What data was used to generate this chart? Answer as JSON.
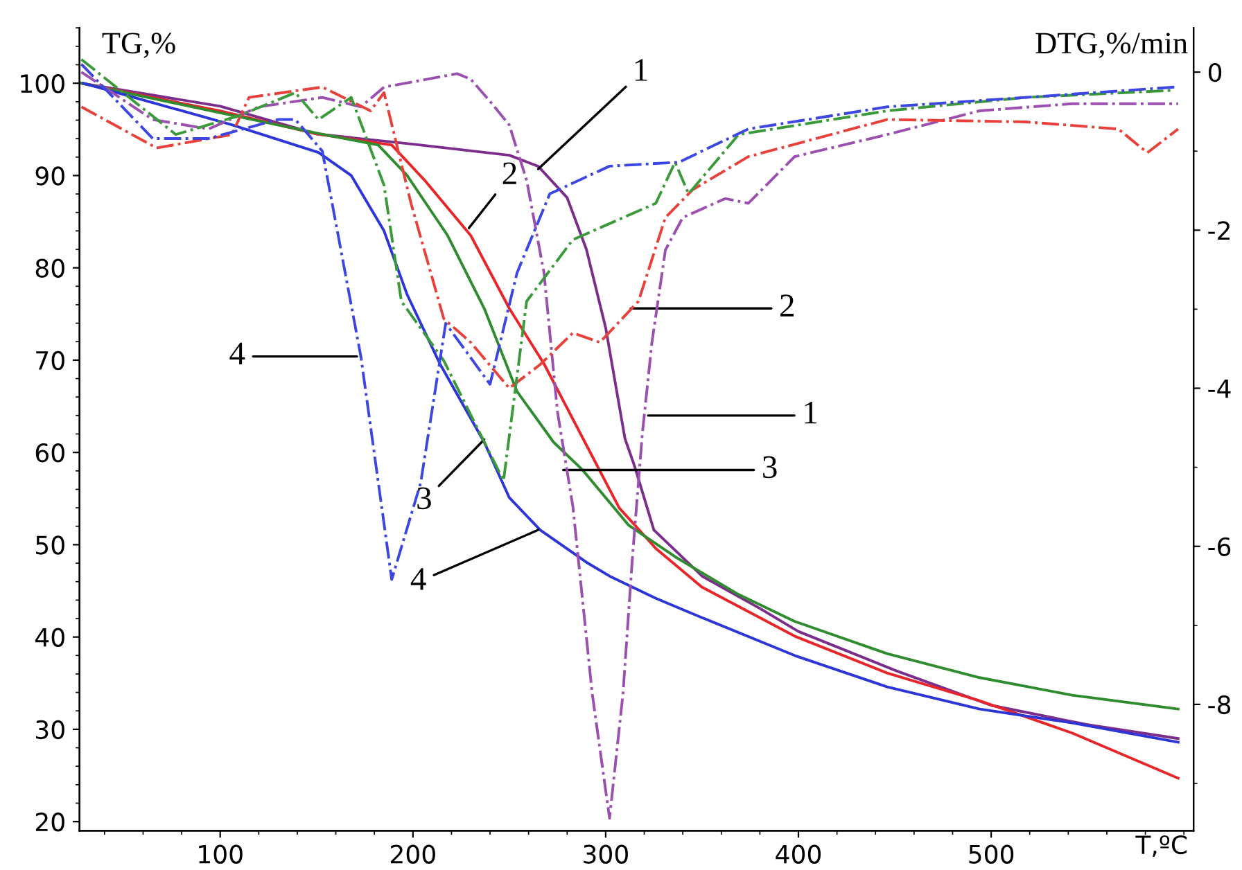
{
  "chart_data": {
    "type": "line",
    "xlabel": "T,ºC",
    "ylabel": "TG,%",
    "y2label": "DTG,%/min",
    "xlim": [
      27,
      605
    ],
    "ylim": [
      19,
      106
    ],
    "y2lim": [
      -9.6,
      0.56
    ],
    "xticks": [
      100,
      200,
      300,
      400,
      500
    ],
    "yticks": [
      20,
      30,
      40,
      50,
      60,
      70,
      80,
      90,
      100
    ],
    "y2ticks": [
      -8,
      -6,
      -4,
      -2,
      0
    ],
    "series": [
      {
        "color": "#7b2d8b",
        "axis": "y",
        "line_style": "solid",
        "x": [
          28,
          100,
          150,
          200,
          250,
          265,
          280,
          290,
          300,
          310,
          315,
          325,
          350,
          380,
          400,
          450,
          500,
          550,
          597
        ],
        "values": [
          100,
          97.5,
          94.5,
          93.4,
          92.2,
          91.0,
          87.6,
          82,
          73.5,
          61.5,
          58.5,
          51.6,
          46.6,
          43.1,
          40.6,
          36.4,
          32.6,
          30.5,
          29.0
        ]
      },
      {
        "color": "#e8262a",
        "axis": "y",
        "line_style": "solid",
        "x": [
          28,
          100,
          150,
          189,
          206,
          230,
          250,
          268,
          293,
          307,
          326,
          350,
          398,
          446,
          494,
          542,
          597
        ],
        "values": [
          100,
          97,
          94.5,
          93.3,
          89.5,
          83.5,
          75.6,
          69.6,
          59.6,
          54,
          49.6,
          45.4,
          40.1,
          36.1,
          33.1,
          29.6,
          24.7
        ]
      },
      {
        "color": "#2e8b2e",
        "axis": "y",
        "line_style": "solid",
        "x": [
          28,
          100,
          150,
          182,
          197,
          218,
          237,
          254,
          273,
          288,
          312,
          336,
          369,
          398,
          446,
          494,
          542,
          597
        ],
        "values": [
          100,
          96.8,
          94.6,
          93.3,
          90.0,
          83.5,
          75.6,
          66.6,
          61.1,
          58.1,
          52.1,
          48.7,
          44.6,
          41.7,
          38.2,
          35.6,
          33.7,
          32.2
        ]
      },
      {
        "color": "#2b35d8",
        "axis": "y",
        "line_style": "solid",
        "x": [
          29,
          106,
          151,
          168,
          185,
          197,
          214,
          237,
          250,
          266,
          290,
          302,
          326,
          350,
          398,
          446,
          494,
          542,
          597
        ],
        "values": [
          100,
          95.5,
          92.5,
          90.0,
          84.0,
          77.1,
          69.6,
          61.1,
          55.1,
          51.6,
          48.1,
          46.6,
          44.2,
          42.1,
          38.0,
          34.6,
          32.2,
          30.7,
          28.6
        ]
      },
      {
        "color": "#9b4fae",
        "axis": "y2",
        "line_style": "dashdot",
        "x": [
          28,
          65,
          94,
          120,
          153,
          173,
          185,
          223,
          230,
          240,
          250,
          259,
          268,
          275,
          283,
          293,
          302,
          309,
          314,
          319,
          324,
          331,
          340,
          362,
          374,
          398,
          446,
          494,
          542,
          597
        ],
        "values": [
          0,
          -0.6,
          -0.72,
          -0.44,
          -0.32,
          -0.44,
          -0.19,
          -0.02,
          -0.09,
          -0.37,
          -0.67,
          -1.37,
          -2.54,
          -4.3,
          -5.5,
          -7.86,
          -9.44,
          -7.86,
          -6.1,
          -4.58,
          -3.42,
          -2.25,
          -1.84,
          -1.6,
          -1.66,
          -1.07,
          -0.79,
          -0.49,
          -0.4,
          -0.4
        ]
      },
      {
        "color": "#e8403a",
        "axis": "y2",
        "line_style": "dashdot",
        "x": [
          28,
          67,
          106,
          115,
          153,
          178,
          185,
          199,
          216,
          230,
          250,
          266,
          283,
          297,
          317,
          331,
          345,
          374,
          446,
          518,
          566,
          581,
          597
        ],
        "values": [
          -0.44,
          -0.96,
          -0.79,
          -0.32,
          -0.19,
          -0.49,
          -0.26,
          -1.66,
          -3.12,
          -3.42,
          -4.0,
          -3.7,
          -3.3,
          -3.42,
          -2.9,
          -1.84,
          -1.49,
          -1.07,
          -0.6,
          -0.63,
          -0.72,
          -1.02,
          -0.72
        ]
      },
      {
        "color": "#3a9a3a",
        "axis": "y2",
        "line_style": "dashdot",
        "x": [
          28,
          77,
          110,
          139,
          151,
          168,
          185,
          194,
          216,
          247,
          259,
          283,
          326,
          336,
          343,
          369,
          446,
          518,
          595
        ],
        "values": [
          0.16,
          -0.79,
          -0.55,
          -0.26,
          -0.6,
          -0.32,
          -1.43,
          -2.9,
          -3.65,
          -5.17,
          -2.9,
          -2.12,
          -1.66,
          -1.14,
          -1.54,
          -0.79,
          -0.49,
          -0.32,
          -0.23
        ]
      },
      {
        "color": "#3c46e0",
        "axis": "y2",
        "line_style": "dashdot",
        "x": [
          28,
          65,
          94,
          130,
          139,
          153,
          173,
          189,
          204,
          217,
          240,
          254,
          271,
          302,
          338,
          374,
          446,
          518,
          595
        ],
        "values": [
          0.1,
          -0.84,
          -0.84,
          -0.6,
          -0.6,
          -1.0,
          -3.6,
          -6.42,
          -5.2,
          -3.18,
          -3.95,
          -2.54,
          -1.54,
          -1.19,
          -1.14,
          -0.72,
          -0.44,
          -0.32,
          -0.19
        ]
      }
    ],
    "annotations": [
      {
        "text": "1",
        "x": 265,
        "y": 90.7
      },
      {
        "text": "2",
        "x": 229,
        "y": 84.3
      },
      {
        "text": "4",
        "x": 171,
        "y": 70.4
      },
      {
        "text": "3",
        "x": 237,
        "y": 61.4
      },
      {
        "text": "4",
        "x": 265,
        "y": 51.6
      },
      {
        "text": "3",
        "x": 278,
        "y": 58.1
      },
      {
        "text": "2",
        "x": 313,
        "y": 75.6
      },
      {
        "text": "1",
        "x": 322,
        "y": 64.0
      }
    ]
  }
}
